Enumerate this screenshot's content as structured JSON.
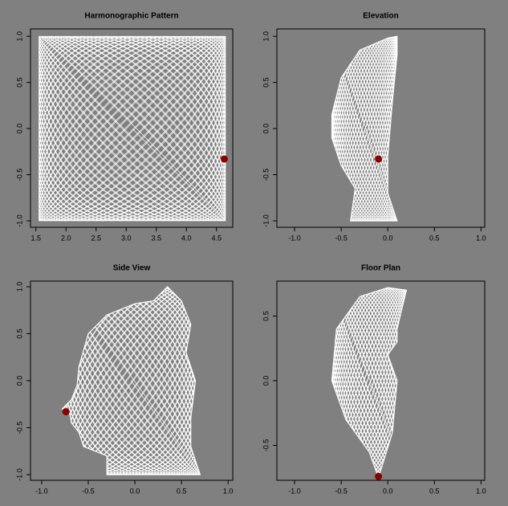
{
  "chart_data": [
    {
      "type": "scatter",
      "title": "Harmonographic Pattern",
      "x": [
        4.63
      ],
      "y": [
        -0.33
      ],
      "color": "#8b0000",
      "xlim": [
        1.41,
        4.77
      ],
      "ylim": [
        -1.07,
        1.08
      ],
      "xticks": [
        1.5,
        {
          "value": 2,
          "label": "2.0"
        },
        2.5,
        {
          "value": 3,
          "label": "3.0"
        },
        3.5,
        {
          "value": 4,
          "label": "4.0"
        },
        4.5
      ],
      "yticks": [
        {
          "value": -1,
          "label": "-1.0"
        },
        -0.5,
        {
          "value": 0,
          "label": "0.0"
        },
        0.5,
        {
          "value": 1,
          "label": "1.0"
        }
      ]
    },
    {
      "type": "scatter",
      "title": "Elevation",
      "x": [
        -0.1
      ],
      "y": [
        -0.33
      ],
      "color": "#8b0000",
      "xlim": [
        -1.19,
        1.04
      ],
      "ylim": [
        -1.07,
        1.08
      ],
      "xticks": [
        {
          "value": -1,
          "label": "-1.0"
        },
        -0.5,
        {
          "value": 0,
          "label": "0.0"
        },
        0.5,
        {
          "value": 1,
          "label": "1.0"
        }
      ],
      "yticks": [
        {
          "value": -1,
          "label": "-1.0"
        },
        -0.5,
        {
          "value": 0,
          "label": "0.0"
        },
        0.5,
        {
          "value": 1,
          "label": "1.0"
        }
      ]
    },
    {
      "type": "scatter",
      "title": "Side View",
      "x": [
        -0.74
      ],
      "y": [
        -0.33
      ],
      "color": "#8b0000",
      "xlim": [
        -1.12,
        1.05
      ],
      "ylim": [
        -1.06,
        1.06
      ],
      "xticks": [
        {
          "value": -1,
          "label": "-1.0"
        },
        -0.5,
        {
          "value": 0,
          "label": "0.0"
        },
        0.5,
        {
          "value": 1,
          "label": "1.0"
        }
      ],
      "yticks": [
        {
          "value": -1,
          "label": "-1.0"
        },
        -0.5,
        {
          "value": 0,
          "label": "0.0"
        },
        0.5,
        {
          "value": 1,
          "label": "1.0"
        }
      ]
    },
    {
      "type": "scatter",
      "title": "Floor Plan",
      "x": [
        -0.1
      ],
      "y": [
        -0.74
      ],
      "color": "#8b0000",
      "xlim": [
        -1.19,
        1.04
      ],
      "ylim": [
        -0.77,
        0.77
      ],
      "xticks": [
        {
          "value": -1,
          "label": "-1.0"
        },
        -0.5,
        {
          "value": 0,
          "label": "0.0"
        },
        0.5,
        {
          "value": 1,
          "label": "1.0"
        }
      ],
      "yticks": [
        -0.5,
        {
          "value": 0,
          "label": "0.0"
        },
        0.5
      ]
    }
  ]
}
